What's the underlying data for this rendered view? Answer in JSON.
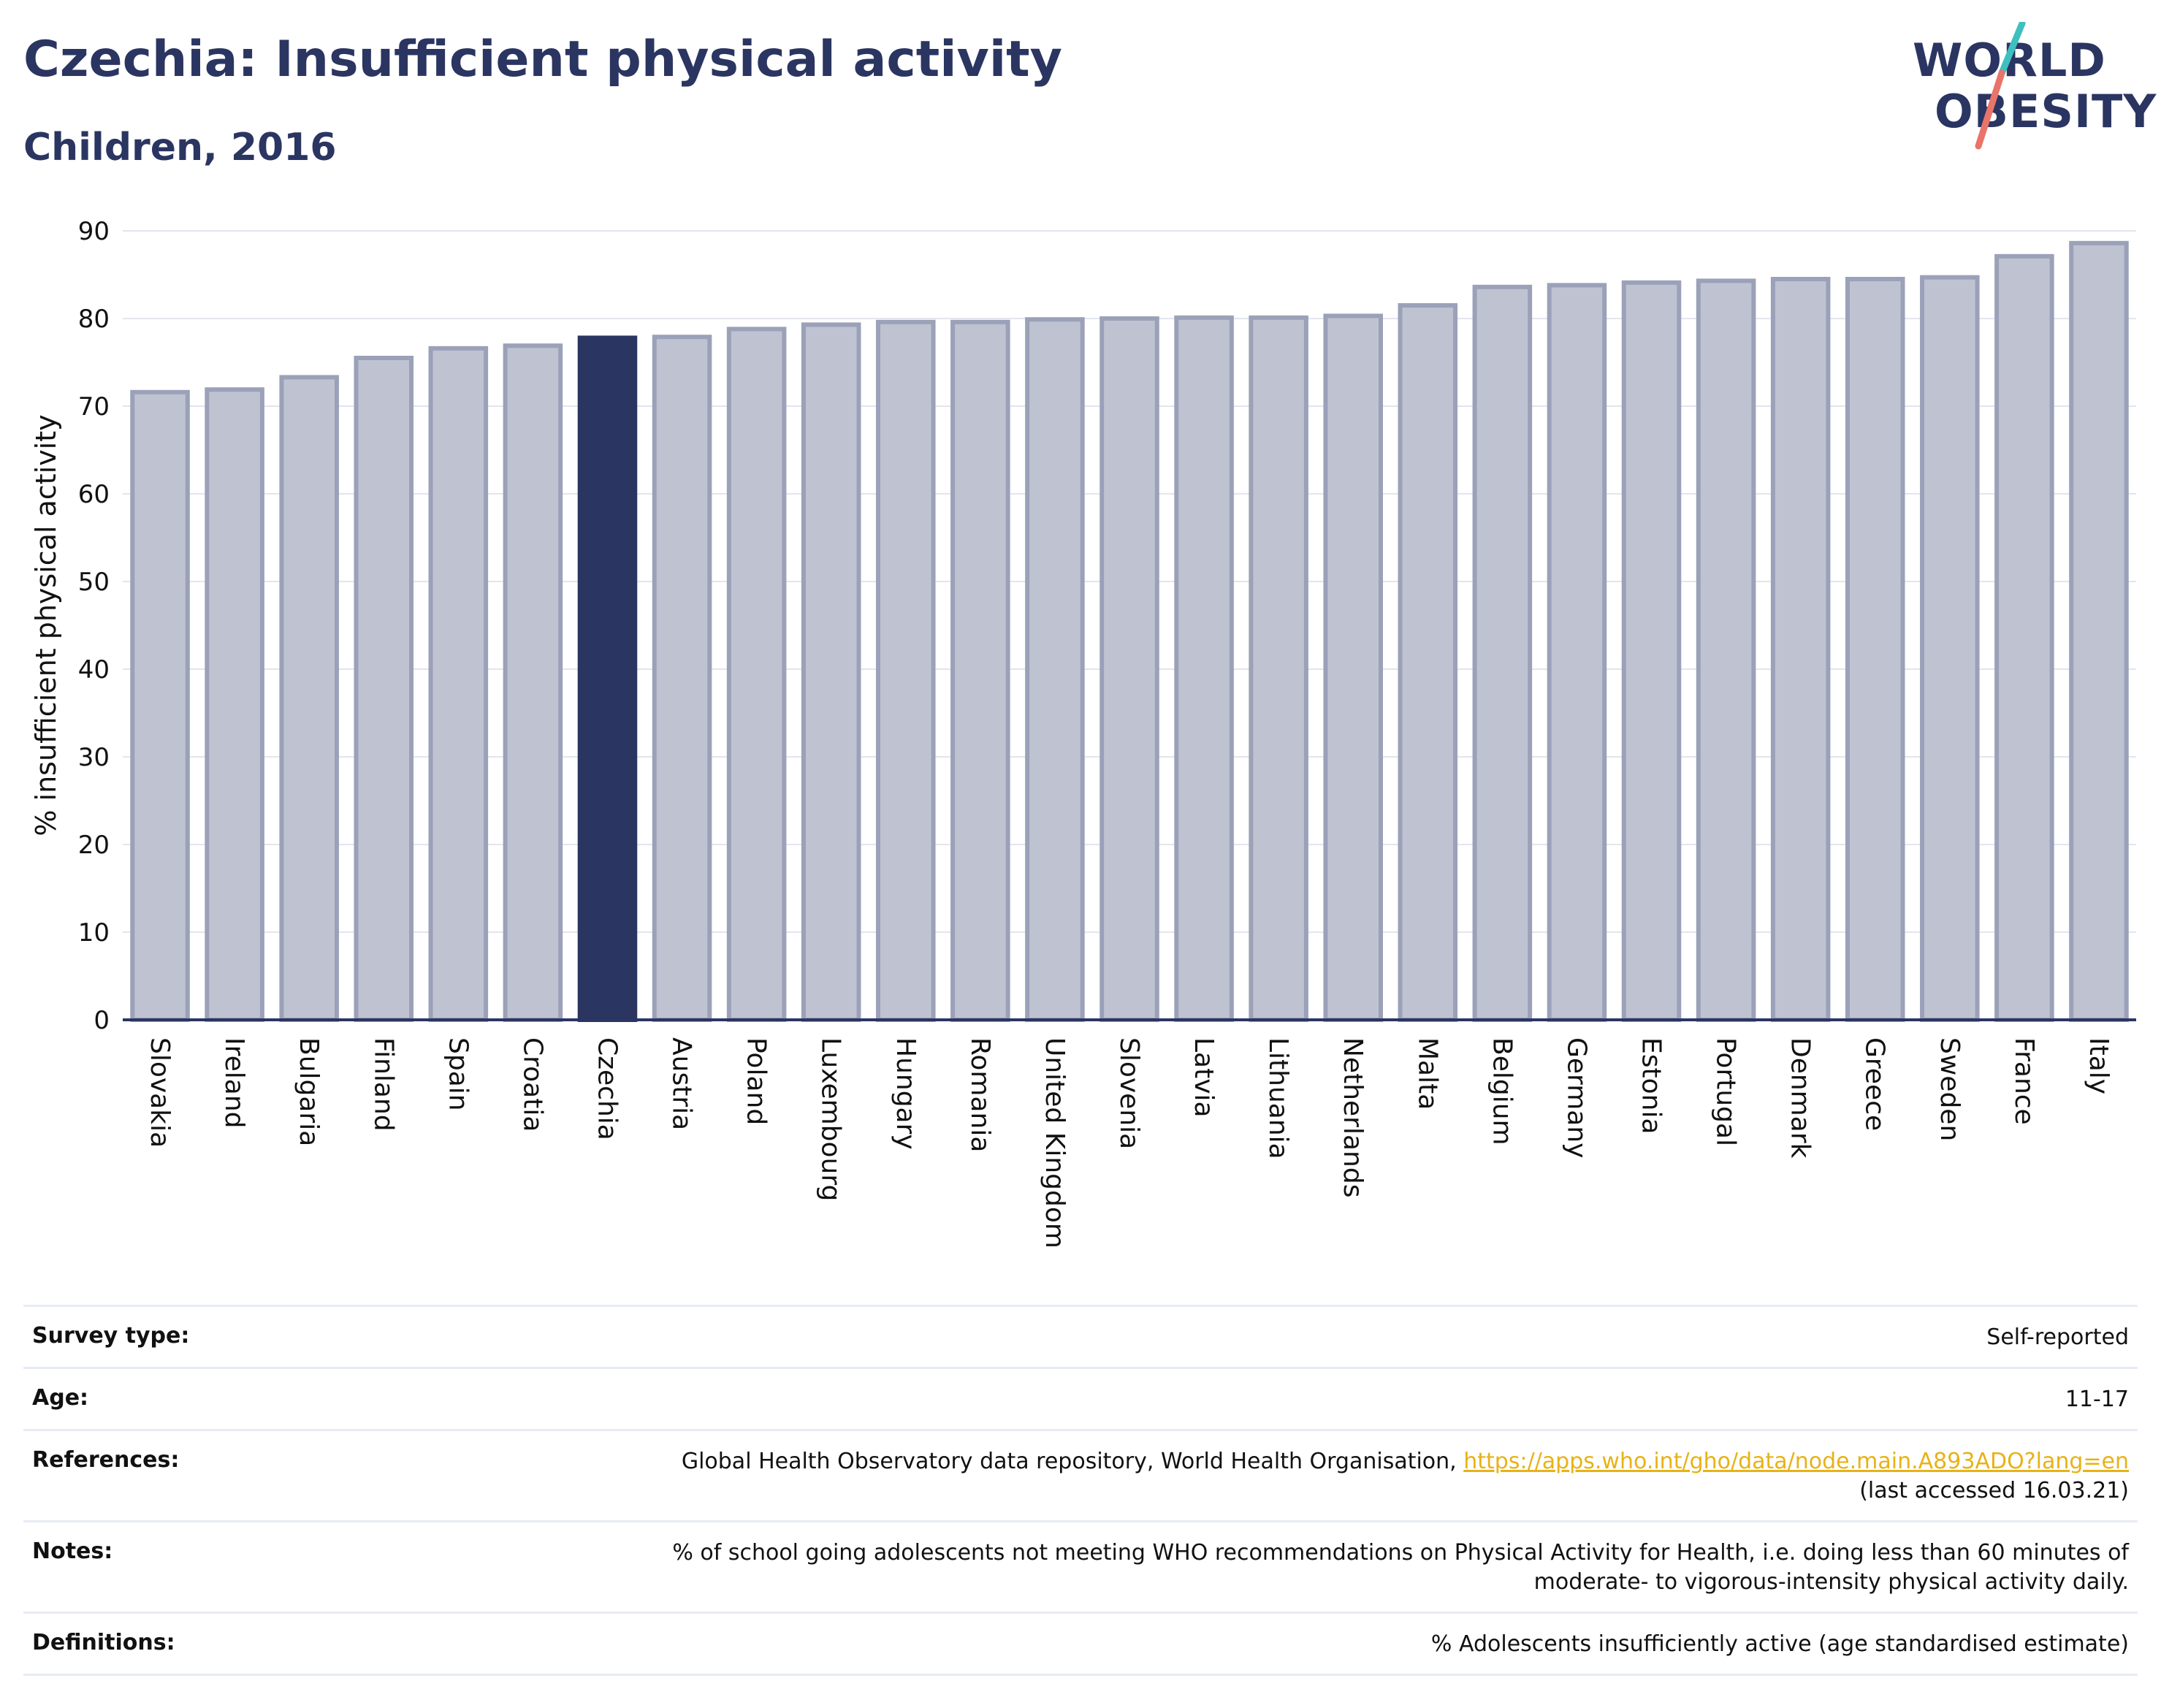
{
  "header": {
    "title": "Czechia: Insufficient physical activity",
    "subtitle": "Children, 2016"
  },
  "logo": {
    "line1": "WORLD",
    "line2": "OBESITY"
  },
  "chart_data": {
    "type": "bar",
    "ylabel": "% insufficient physical activity",
    "ylim": [
      0,
      90
    ],
    "yticks": [
      0,
      10,
      20,
      30,
      40,
      50,
      60,
      70,
      80,
      90
    ],
    "grid": true,
    "highlight": "Czechia",
    "colors": {
      "bar": "#bfc3d1",
      "bar_edge": "#9aa1b8",
      "highlight": "#2b3561",
      "axis": "#2b3561",
      "grid": "#e3e5ee"
    },
    "categories": [
      "Slovakia",
      "Ireland",
      "Bulgaria",
      "Finland",
      "Spain",
      "Croatia",
      "Czechia",
      "Austria",
      "Poland",
      "Luxembourg",
      "Hungary",
      "Romania",
      "United Kingdom",
      "Slovenia",
      "Latvia",
      "Lithuania",
      "Netherlands",
      "Malta",
      "Belgium",
      "Germany",
      "Estonia",
      "Portugal",
      "Denmark",
      "Greece",
      "Sweden",
      "France",
      "Italy"
    ],
    "values": [
      71.6,
      71.9,
      73.3,
      75.5,
      76.6,
      76.9,
      77.8,
      77.9,
      78.8,
      79.3,
      79.6,
      79.6,
      79.9,
      80.0,
      80.1,
      80.1,
      80.3,
      81.5,
      83.6,
      83.8,
      84.1,
      84.3,
      84.5,
      84.5,
      84.7,
      87.1,
      88.6
    ]
  },
  "info": {
    "survey_type_label": "Survey type:",
    "survey_type_value": "Self-reported",
    "age_label": "Age:",
    "age_value": "11-17",
    "references_label": "References:",
    "references_text": "Global Health Observatory data repository, World Health Organisation,",
    "references_link": "https://apps.who.int/gho/data/node.main.A893ADO?lang=en",
    "references_accessed": "(last accessed 16.03.21)",
    "notes_label": "Notes:",
    "notes_line1": "% of school going adolescents not meeting WHO recommendations on Physical Activity for Health, i.e. doing less than 60 minutes of",
    "notes_line2": "moderate- to vigorous-intensity physical activity daily.",
    "definitions_label": "Definitions:",
    "definitions_value": "% Adolescents insufficiently active (age standardised estimate)"
  }
}
